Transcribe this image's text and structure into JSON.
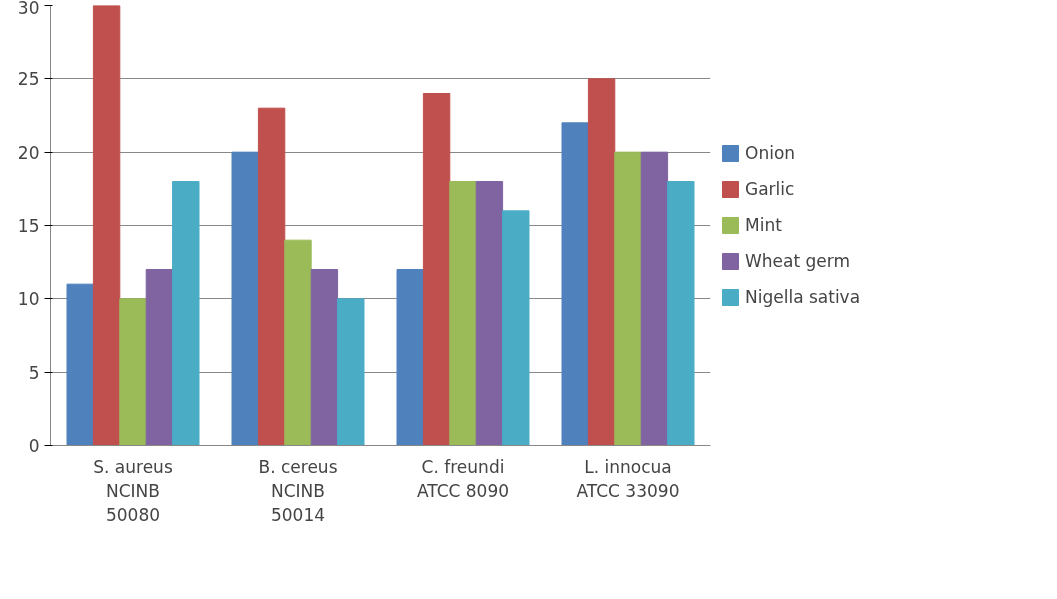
{
  "chart_data": {
    "type": "bar",
    "categories": [
      "S. aureus NCINB 50080",
      "B. cereus NCINB 50014",
      "C. freundi ATCC 8090",
      "L. innocua ATCC 33090"
    ],
    "series": [
      {
        "name": "Onion",
        "color": "#4f81bd",
        "values": [
          11,
          20,
          12,
          22
        ]
      },
      {
        "name": "Garlic",
        "color": "#c0504d",
        "values": [
          30,
          23,
          24,
          25
        ]
      },
      {
        "name": "Mint",
        "color": "#9bbb59",
        "values": [
          10,
          14,
          18,
          20
        ]
      },
      {
        "name": "Wheat germ",
        "color": "#8064a2",
        "values": [
          12,
          12,
          18,
          20
        ]
      },
      {
        "name": "Nigella sativa",
        "color": "#4bacc6",
        "values": [
          18,
          10,
          16,
          18
        ]
      }
    ],
    "ylim": [
      0,
      30
    ],
    "yticks": [
      0,
      5,
      10,
      15,
      20,
      25,
      30
    ],
    "grid": "y",
    "legend": "right"
  }
}
